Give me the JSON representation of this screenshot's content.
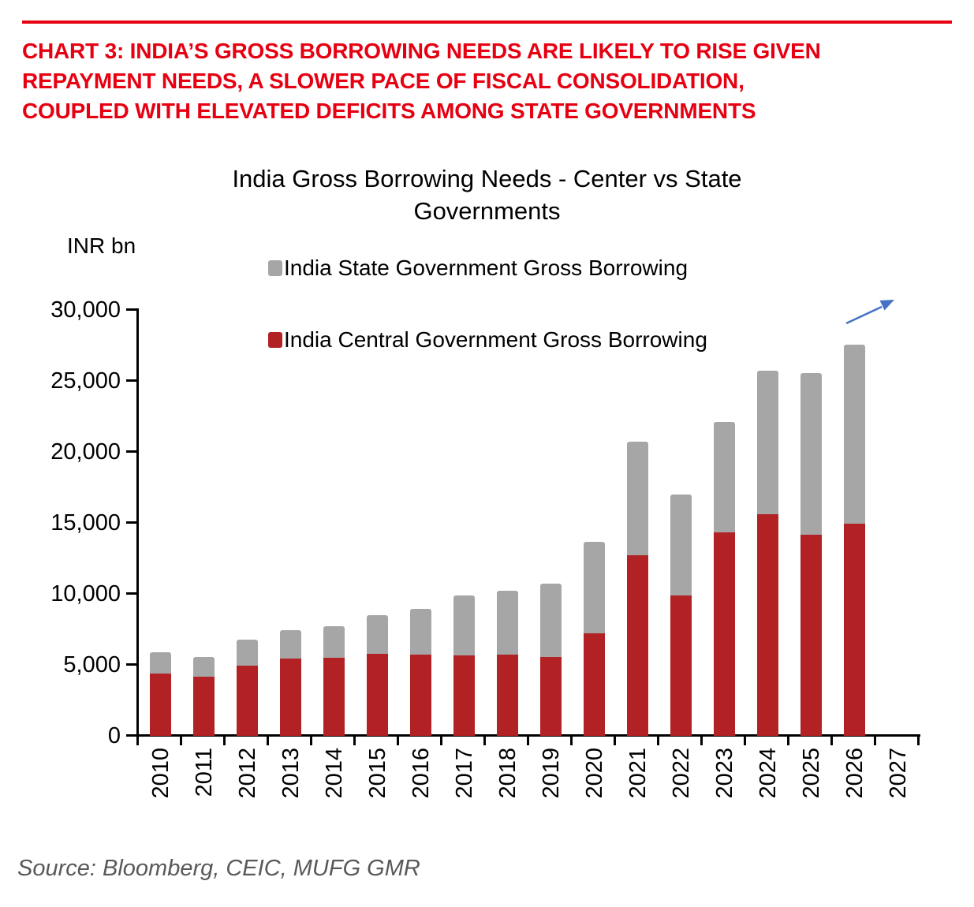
{
  "page": {
    "headline_lines": [
      "CHART 3: INDIA’S GROSS BORROWING NEEDS ARE LIKELY TO RISE GIVEN",
      "REPAYMENT NEEDS, A SLOWER PACE OF FISCAL CONSOLIDATION,",
      "COUPLED WITH ELEVATED DEFICITS AMONG STATE GOVERNMENTS"
    ],
    "headline_color": "#E60012",
    "source_text": "Source: Bloomberg, CEIC, MUFG GMR"
  },
  "chart_data": {
    "type": "bar",
    "stacked": true,
    "title": "India Gross Borrowing Needs - Center vs State Governments",
    "title_lines": [
      "India Gross Borrowing Needs - Center vs State",
      "Governments"
    ],
    "unit_label": "INR bn",
    "categories": [
      "2010",
      "2011",
      "2012",
      "2013",
      "2014",
      "2015",
      "2016",
      "2017",
      "2018",
      "2019",
      "2020",
      "2021",
      "2022",
      "2023",
      "2024",
      "2025",
      "2026",
      "2027"
    ],
    "series": [
      {
        "name": "India State Government Gross Borrowing",
        "color": "#A6A6A6",
        "values": [
          1500,
          1400,
          1850,
          2000,
          2200,
          2700,
          3250,
          4250,
          4500,
          5150,
          6400,
          8050,
          7100,
          7750,
          10150,
          11400,
          12600,
          null
        ]
      },
      {
        "name": "India Central Government Gross Borrowing",
        "color": "#B22225",
        "values": [
          4400,
          4150,
          4950,
          5450,
          5500,
          5800,
          5700,
          5650,
          5750,
          5550,
          7250,
          12700,
          9900,
          14350,
          15600,
          14150,
          14950,
          null
        ]
      }
    ],
    "stack_order_bottom_to_top": [
      "India Central Government Gross Borrowing",
      "India State Government Gross Borrowing"
    ],
    "ylim": [
      0,
      30000
    ],
    "ytick_step": 5000,
    "ytick_labels": [
      "0",
      "5,000",
      "10,000",
      "15,000",
      "20,000",
      "25,000",
      "30,000"
    ],
    "grid": false,
    "legend_position": "inside-top-center",
    "annotation": {
      "type": "trend-arrow-up-right",
      "color": "#4472C4"
    }
  }
}
